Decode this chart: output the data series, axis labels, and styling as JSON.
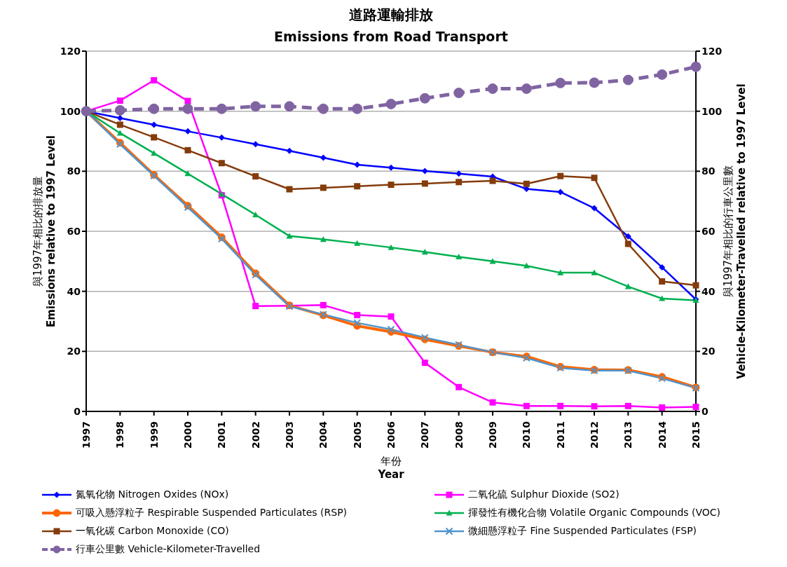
{
  "chart_data": {
    "type": "line",
    "title": "道路運輸排放",
    "subtitle": "Emissions from Road Transport",
    "xlabel": "年份\nYear",
    "ylabel": "與1997年相比的排放量\nEmissions relative to 1997 Level",
    "y2label": "與1997年相比的行車公里數\nVehicle-Kilometer-Travelled relative to 1997 Level",
    "categories": [
      "1997",
      "1998",
      "1999",
      "2000",
      "2001",
      "2002",
      "2003",
      "2004",
      "2005",
      "2006",
      "2007",
      "2008",
      "2009",
      "2010",
      "2011",
      "2012",
      "2013",
      "2014",
      "2015"
    ],
    "series": [
      {
        "name": "氮氧化物 Nitrogen Oxides (NOx)",
        "color": "#0000ff",
        "marker": "diamond",
        "values": [
          100,
          97.7,
          95.5,
          93.3,
          91.2,
          89,
          86.8,
          84.5,
          82.2,
          81.2,
          80.1,
          79.2,
          78.2,
          74.1,
          73.1,
          67.7,
          58.3,
          48,
          37.3
        ]
      },
      {
        "name": "二氧化硫 Sulphur Dioxide (SO2)",
        "color": "#ff00ff",
        "marker": "square",
        "values": [
          100,
          103.5,
          110.3,
          103.4,
          72,
          35.1,
          35.2,
          35.4,
          32.1,
          31.6,
          16.2,
          8.1,
          3,
          1.8,
          1.8,
          1.7,
          1.8,
          1.3,
          1.5
        ]
      },
      {
        "name": "可吸入懸浮粒子 Respirable Suspended Particulates (RSP)",
        "color": "#ff6600",
        "marker": "circle",
        "values": [
          100,
          89.5,
          78.8,
          68.5,
          58,
          46,
          35.3,
          32,
          28.5,
          26.5,
          24,
          21.8,
          19.7,
          18.3,
          14.9,
          13.9,
          13.8,
          11.5,
          8
        ]
      },
      {
        "name": "揮發性有機化合物 Volatile Organic Compounds (VOC)",
        "color": "#00b050",
        "marker": "triangle",
        "values": [
          100,
          92.7,
          86,
          79.2,
          72.4,
          65.5,
          58.4,
          57.3,
          56,
          54.6,
          53.1,
          51.5,
          50,
          48.5,
          46.2,
          46.2,
          41.6,
          37.6,
          37
        ]
      },
      {
        "name": "一氧化碳 Carbon Monoxide (CO)",
        "color": "#843c0c",
        "marker": "square",
        "values": [
          100,
          95.5,
          91.3,
          87,
          82.7,
          78.3,
          74,
          74.5,
          75,
          75.5,
          75.9,
          76.4,
          76.8,
          75.8,
          78.4,
          77.8,
          55.8,
          43.3,
          42
        ]
      },
      {
        "name": "微細懸浮粒子 Fine Suspended Particulates (FSP)",
        "color": "#4f94cd",
        "marker": "cross",
        "values": [
          100,
          89,
          78.5,
          68,
          57.5,
          45.5,
          35,
          32.3,
          29.5,
          27.3,
          24.6,
          22.2,
          19.7,
          17.8,
          14.5,
          13.6,
          13.6,
          11,
          7.8
        ]
      },
      {
        "name": "行車公里數 Vehicle-Kilometer-Travelled",
        "color": "#8064a2",
        "marker": "circle",
        "line_style": "dashed",
        "axis": "y2",
        "values": [
          100,
          100.3,
          100.8,
          100.8,
          100.8,
          101.6,
          101.6,
          100.8,
          100.8,
          102.4,
          104.3,
          106.1,
          107.5,
          107.5,
          109.4,
          109.5,
          110.4,
          112.2,
          114.8
        ]
      }
    ],
    "ylim": [
      0,
      120
    ],
    "yticks": [
      0,
      20,
      40,
      60,
      80,
      100,
      120
    ],
    "y2lim": [
      0,
      120
    ],
    "y2ticks": [
      0,
      20,
      40,
      60,
      80,
      100,
      120
    ],
    "grid": "y",
    "legend": "bottom",
    "line_style": "solid"
  }
}
